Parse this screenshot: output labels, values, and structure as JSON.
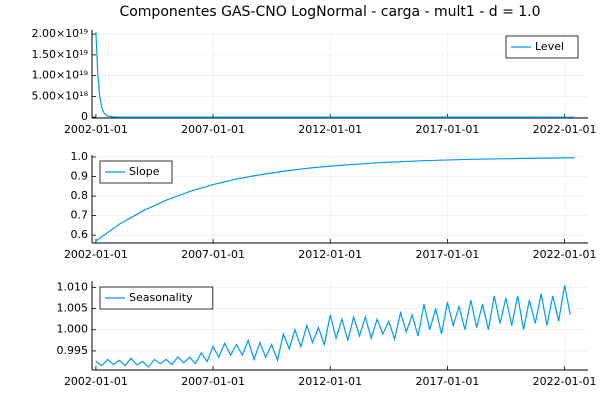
{
  "title": "Componentes GAS-CNO LogNormal - carga - mult1 - d = 1.0",
  "chart_data": [
    {
      "type": "line",
      "x": [
        "2002-01-01",
        "2002-02-01",
        "2002-03-01",
        "2002-04-01",
        "2002-05-01",
        "2002-06-01",
        "2002-07-01",
        "2002-09-01",
        "2003-01-01",
        "2022-06-01"
      ],
      "series": [
        {
          "name": "Level",
          "color": "#009af9",
          "values": [
            2.05e+19,
            1e+19,
            5e+18,
            2.5e+18,
            1.2e+18,
            6e+17,
            3e+17,
            1e+17,
            2e+16,
            0
          ]
        }
      ],
      "xlim": [
        "2001-11-01",
        "2023-01-01"
      ],
      "xticks": [
        "2002-01-01",
        "2007-01-01",
        "2012-01-01",
        "2017-01-01",
        "2022-01-01"
      ],
      "ylim": [
        -2e+17,
        2.1e+19
      ],
      "yticks": [
        0,
        {
          "value": 5e+18,
          "label": "5.00×10¹⁸"
        },
        {
          "value": 1e+19,
          "label": "1.00×10¹⁹"
        },
        {
          "value": 1.5e+19,
          "label": "1.50×10¹⁹"
        },
        {
          "value": 2e+19,
          "label": "2.00×10¹⁹"
        }
      ],
      "grid": true,
      "legend": "top-right"
    },
    {
      "type": "line",
      "x": [
        "2002-01-01",
        "2003-01-01",
        "2004-01-01",
        "2005-01-01",
        "2006-01-01",
        "2007-01-01",
        "2008-01-01",
        "2009-01-01",
        "2010-01-01",
        "2011-01-01",
        "2012-01-01",
        "2014-01-01",
        "2016-01-01",
        "2018-01-01",
        "2020-01-01",
        "2022-06-01"
      ],
      "series": [
        {
          "name": "Slope",
          "color": "#009af9",
          "values": [
            0.57,
            0.656,
            0.724,
            0.779,
            0.823,
            0.859,
            0.887,
            0.909,
            0.927,
            0.942,
            0.953,
            0.97,
            0.981,
            0.988,
            0.992,
            0.996
          ]
        }
      ],
      "xlim": [
        "2001-11-01",
        "2023-01-01"
      ],
      "xticks": [
        "2002-01-01",
        "2007-01-01",
        "2012-01-01",
        "2017-01-01",
        "2022-01-01"
      ],
      "ylim": [
        0.56,
        1.01
      ],
      "yticks": [
        0.6,
        0.7,
        0.8,
        0.9,
        {
          "value": 1,
          "label": "1.0"
        }
      ],
      "grid": true,
      "legend": "top-left"
    },
    {
      "type": "line",
      "x": [
        "2002-01-01",
        "2002-04-01",
        "2002-07-01",
        "2002-10-01",
        "2003-01-01",
        "2003-04-01",
        "2003-07-01",
        "2003-10-01",
        "2004-01-01",
        "2004-04-01",
        "2004-07-01",
        "2004-10-01",
        "2005-01-01",
        "2005-04-01",
        "2005-07-01",
        "2005-10-01",
        "2006-01-01",
        "2006-04-01",
        "2006-07-01",
        "2006-10-01",
        "2007-01-01",
        "2007-04-01",
        "2007-07-01",
        "2007-10-01",
        "2008-01-01",
        "2008-04-01",
        "2008-07-01",
        "2008-10-01",
        "2009-01-01",
        "2009-04-01",
        "2009-07-01",
        "2009-10-01",
        "2010-01-01",
        "2010-04-01",
        "2010-07-01",
        "2010-10-01",
        "2011-01-01",
        "2011-04-01",
        "2011-07-01",
        "2011-10-01",
        "2012-01-01",
        "2012-04-01",
        "2012-07-01",
        "2012-10-01",
        "2013-01-01",
        "2013-04-01",
        "2013-07-01",
        "2013-10-01",
        "2014-01-01",
        "2014-04-01",
        "2014-07-01",
        "2014-10-01",
        "2015-01-01",
        "2015-04-01",
        "2015-07-01",
        "2015-10-01",
        "2016-01-01",
        "2016-04-01",
        "2016-07-01",
        "2016-10-01",
        "2017-01-01",
        "2017-04-01",
        "2017-07-01",
        "2017-10-01",
        "2018-01-01",
        "2018-04-01",
        "2018-07-01",
        "2018-10-01",
        "2019-01-01",
        "2019-04-01",
        "2019-07-01",
        "2019-10-01",
        "2020-01-01",
        "2020-04-01",
        "2020-07-01",
        "2020-10-01",
        "2021-01-01",
        "2021-04-01",
        "2021-07-01",
        "2021-10-01",
        "2022-01-01",
        "2022-04-01"
      ],
      "series": [
        {
          "name": "Seasonality",
          "color": "#009af9",
          "values": [
            0.9925,
            0.9915,
            0.993,
            0.9918,
            0.9928,
            0.9915,
            0.9933,
            0.9917,
            0.9925,
            0.9912,
            0.993,
            0.992,
            0.993,
            0.9918,
            0.9936,
            0.9922,
            0.9935,
            0.992,
            0.9945,
            0.9925,
            0.996,
            0.9935,
            0.9968,
            0.994,
            0.9965,
            0.994,
            0.9975,
            0.993,
            0.997,
            0.9935,
            0.9965,
            0.9928,
            0.999,
            0.9955,
            1.0,
            0.996,
            1.001,
            0.997,
            1.0005,
            0.9965,
            1.0035,
            0.998,
            1.0025,
            0.9975,
            1.003,
            0.9985,
            1.003,
            0.998,
            1.0025,
            0.999,
            1.002,
            0.9978,
            1.004,
            0.9995,
            1.0035,
            0.9985,
            1.006,
            1.0,
            1.005,
            0.999,
            1.0065,
            1.001,
            1.0055,
            1.0,
            1.007,
            1.0005,
            1.006,
            1.0,
            1.008,
            1.0015,
            1.0075,
            1.001,
            1.008,
            1.0,
            1.007,
            1.0015,
            1.0085,
            1.001,
            1.008,
            1.002,
            1.0105,
            1.0035
          ]
        }
      ],
      "xlim": [
        "2001-11-01",
        "2023-01-01"
      ],
      "xticks": [
        "2002-01-01",
        "2007-01-01",
        "2012-01-01",
        "2017-01-01",
        "2022-01-01"
      ],
      "ylim": [
        0.9905,
        1.0115
      ],
      "yticks": [
        0.995,
        {
          "value": 1,
          "label": "1.000"
        },
        1.005,
        {
          "value": 1.01,
          "label": "1.010"
        }
      ],
      "grid": true,
      "legend": "top-left"
    }
  ]
}
